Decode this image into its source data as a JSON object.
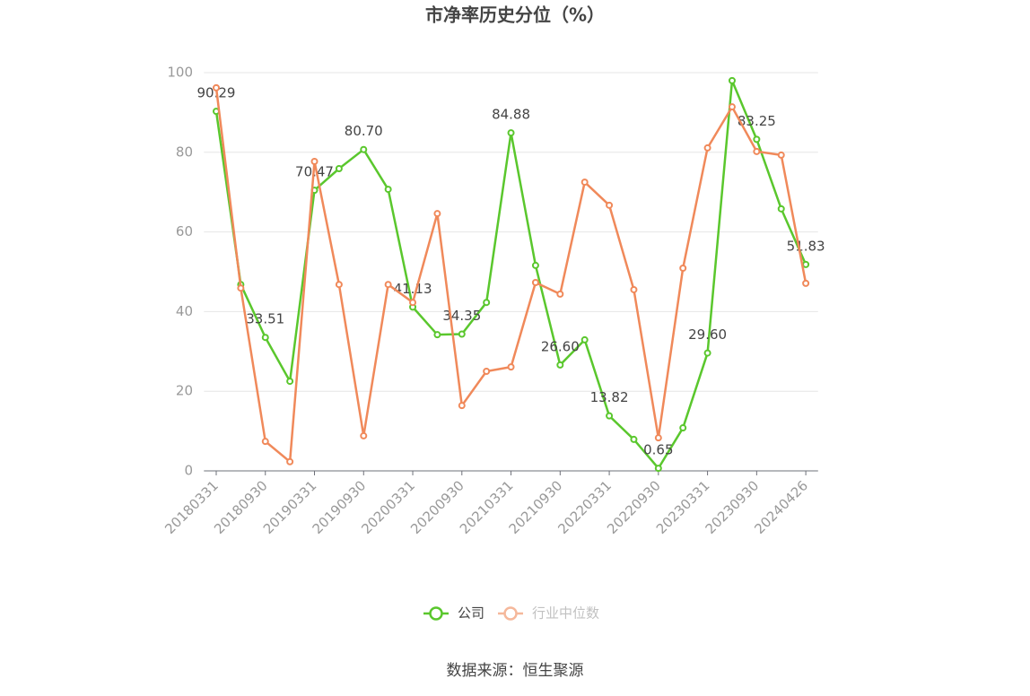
{
  "chart_data": {
    "type": "line",
    "title": "市净率历史分位（%）",
    "categories": [
      "20180331",
      null,
      "20180930",
      null,
      "20190331",
      null,
      "20190930",
      null,
      "20200331",
      null,
      "20200930",
      null,
      "20210331",
      null,
      "20210930",
      null,
      "20220331",
      null,
      "20220930",
      null,
      "20230331",
      null,
      "20230930",
      null,
      "20240426"
    ],
    "series": [
      {
        "name": "公司",
        "color": "#5ac72d",
        "values": [
          90.29,
          46.8,
          33.51,
          22.5,
          70.47,
          75.9,
          80.7,
          70.7,
          41.13,
          34.2,
          34.35,
          42.3,
          84.88,
          51.6,
          26.6,
          32.9,
          13.82,
          7.9,
          0.65,
          10.8,
          29.6,
          98.0,
          83.25,
          65.8,
          51.83
        ],
        "value_labels": [
          "90.29",
          null,
          "33.51",
          null,
          "70.47",
          null,
          "80.70",
          null,
          "41.13",
          null,
          "34.35",
          null,
          "84.88",
          null,
          "26.60",
          null,
          "13.82",
          null,
          "0.65",
          null,
          "29.60",
          null,
          "83.25",
          null,
          "51.83"
        ]
      },
      {
        "name": "行业中位数",
        "color": "#f0895a",
        "values": [
          96.2,
          45.9,
          7.4,
          2.3,
          77.7,
          46.8,
          8.8,
          46.8,
          42.3,
          64.6,
          16.4,
          25.0,
          26.1,
          47.3,
          44.4,
          72.5,
          66.7,
          45.5,
          8.3,
          50.9,
          81.1,
          91.4,
          80.2,
          79.3,
          47.1
        ]
      }
    ],
    "ylim": [
      0,
      100
    ],
    "yticks": [
      0,
      20,
      40,
      60,
      80,
      100
    ],
    "grid": true,
    "legend": "bottom",
    "source": "数据来源：恒生聚源"
  }
}
